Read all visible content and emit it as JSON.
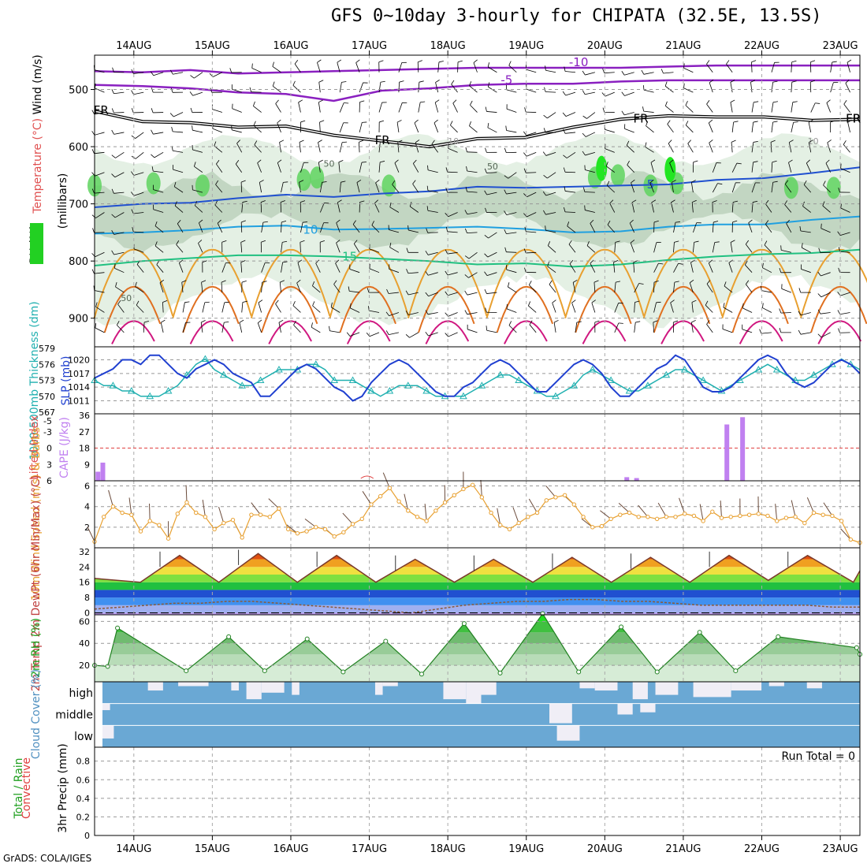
{
  "title": "GFS 0~10day 3-hourly for CHIPATA (32.5E, 13.5S)",
  "credit": "GrADS: COLA/IGES",
  "chart_data": [
    {
      "panel": "upper-air",
      "type": "contour",
      "ylabel_parts": [
        "RH (%)",
        "Temperature",
        "(°C)",
        "Wind",
        "(m/s)",
        "(millibars)"
      ],
      "yticks": [
        500,
        600,
        700,
        800,
        900
      ],
      "ylim": [
        950,
        440
      ],
      "contour_labels": {
        "minus10": "-10",
        "minus5": "-5",
        "freezing": "FR",
        "plus5": "5",
        "plus10": "10",
        "plus15": "15",
        "rh50": "50",
        "rh10": "10"
      },
      "isotherms_hpa": {
        "minus10": [
          468,
          470,
          466,
          472,
          470,
          468,
          466,
          464,
          462,
          462,
          462,
          462,
          460,
          458,
          458,
          458,
          458
        ],
        "minus5": [
          492,
          494,
          498,
          505,
          508,
          520,
          502,
          498,
          492,
          490,
          490,
          486,
          484,
          484,
          484,
          484,
          484
        ],
        "freezing": [
          538,
          556,
          558,
          566,
          564,
          580,
          590,
          600,
          586,
          584,
          566,
          552,
          546,
          548,
          548,
          554,
          552
        ],
        "plus5": [
          706,
          700,
          698,
          690,
          684,
          688,
          682,
          678,
          670,
          672,
          670,
          668,
          666,
          658,
          655,
          646,
          636
        ],
        "plus10": [
          752,
          750,
          746,
          740,
          738,
          745,
          744,
          742,
          740,
          744,
          750,
          748,
          740,
          736,
          736,
          728,
          722
        ],
        "plus15": [
          808,
          800,
          795,
          790,
          790,
          792,
          796,
          800,
          806,
          804,
          810,
          806,
          798,
          792,
          788,
          786,
          780
        ]
      }
    },
    {
      "panel": "sea-level-pressure-thickness",
      "type": "line",
      "ylabel_left": "1000-500mb Thickness (dm)",
      "ylabel_right": "SLP (mb)",
      "thickness_ticks": [
        567,
        570,
        573,
        576,
        579
      ],
      "slp_ticks": [
        1011,
        1014,
        1017,
        1020
      ],
      "thickness_ylim": [
        567,
        579
      ],
      "slp_ylim": [
        1008.5,
        1022.5
      ],
      "slp": [
        1016,
        1017,
        1018,
        1020,
        1020,
        1019,
        1021,
        1021,
        1019,
        1017,
        1016,
        1018,
        1019,
        1020,
        1019,
        1017,
        1016,
        1015,
        1012,
        1012,
        1014,
        1016,
        1018,
        1019,
        1018,
        1016,
        1014,
        1013,
        1011,
        1012,
        1015,
        1017,
        1019,
        1020,
        1019,
        1017,
        1015,
        1013,
        1012,
        1012,
        1014,
        1015,
        1017,
        1019,
        1020,
        1019,
        1017,
        1015,
        1013,
        1013,
        1015,
        1017,
        1019,
        1020,
        1019,
        1017,
        1014,
        1012,
        1012,
        1014,
        1016,
        1018,
        1019,
        1021,
        1020,
        1017,
        1014,
        1013,
        1013,
        1014,
        1016,
        1018,
        1020,
        1021,
        1020,
        1017,
        1015,
        1014,
        1015,
        1017,
        1019,
        1020,
        1019,
        1017
      ],
      "thickness": [
        573,
        572,
        572,
        571,
        571,
        570,
        570,
        570,
        571,
        572,
        574,
        576,
        577,
        575,
        574,
        573,
        572,
        572,
        573,
        574,
        575,
        575,
        575,
        576,
        576,
        575,
        573,
        573,
        573,
        572,
        571,
        570,
        571,
        572,
        572,
        572,
        571,
        570,
        570,
        570,
        570,
        571,
        572,
        573,
        574,
        574,
        573,
        572,
        571,
        570,
        570,
        571,
        572,
        574,
        575,
        574,
        573,
        572,
        571,
        571,
        572,
        573,
        574,
        575,
        575,
        574,
        573,
        572,
        571,
        572,
        573,
        574,
        575,
        576,
        575,
        574,
        573,
        573,
        574,
        575,
        576,
        577,
        576,
        575
      ]
    },
    {
      "panel": "stability",
      "type": "bar",
      "ylabel_left": "Lifted Index",
      "ylabel_right": "CAPE (J/kg)",
      "li_ticks": [
        -5,
        -3,
        0,
        3,
        6
      ],
      "cape_ticks": [
        9,
        18,
        27,
        36
      ],
      "cape_ylim": [
        0,
        36
      ],
      "cape": [
        {
          "t": 0.1,
          "v": 5
        },
        {
          "t": 0.6,
          "v": 10
        },
        {
          "t": 54.0,
          "v": 2
        },
        {
          "t": 55.0,
          "v": 1.5
        },
        {
          "t": 64.2,
          "v": 31
        },
        {
          "t": 65.8,
          "v": 35
        }
      ],
      "lifted_index_marks": [
        {
          "t": 27.8,
          "v": 6.0
        }
      ]
    },
    {
      "panel": "surface-wind",
      "type": "line",
      "ylabel": "10m Wind Speed (m/s) & Barbs",
      "yticks": [
        2,
        4,
        6
      ],
      "ylim": [
        0,
        6.5
      ],
      "speed": [
        0.6,
        3.0,
        4.0,
        3.4,
        3.2,
        1.6,
        2.6,
        2.2,
        0.9,
        3.3,
        4.4,
        3.4,
        3.0,
        1.8,
        2.4,
        2.7,
        1.0,
        3.2,
        3.2,
        3.0,
        3.8,
        1.8,
        1.4,
        1.6,
        2.0,
        1.8,
        1.1,
        1.5,
        2.3,
        2.8,
        4.2,
        5.0,
        5.8,
        4.5,
        3.6,
        3.0,
        2.6,
        3.6,
        4.4,
        5.1,
        5.7,
        6.1,
        4.9,
        3.4,
        2.2,
        1.8,
        2.4,
        3.0,
        3.4,
        4.6,
        4.9,
        5.1,
        4.2,
        3.0,
        2.0,
        2.1,
        2.8,
        3.2,
        3.4,
        3.0,
        3.0,
        2.8,
        3.0,
        3.0,
        3.3,
        3.1,
        2.6,
        3.5,
        2.9,
        3.0,
        3.1,
        3.2,
        3.3,
        3.1,
        2.6,
        2.9,
        3.0,
        2.4,
        3.4,
        3.2,
        3.1,
        2.6,
        0.8,
        0.5
      ]
    },
    {
      "panel": "temperature",
      "type": "area",
      "ylabel": "2m Temp 2m DewPt (6hr Min/Max) (°C)",
      "yticks": [
        0,
        8,
        16,
        24,
        32
      ],
      "ylim": [
        -1,
        34
      ],
      "daily_max": [
        30,
        31,
        30,
        28,
        28,
        29,
        29,
        30,
        30
      ],
      "daily_min": [
        16,
        16,
        16,
        16,
        16,
        16,
        16,
        16,
        17
      ],
      "first_min": 18,
      "dewpoint": [
        2,
        3,
        4,
        5,
        5,
        6,
        6,
        5,
        4,
        3,
        2,
        1,
        0,
        2,
        4,
        5,
        6,
        6,
        7,
        7,
        6,
        6,
        5,
        4,
        4,
        4,
        4,
        4,
        3,
        3
      ]
    },
    {
      "panel": "relative-humidity",
      "type": "area",
      "ylabel": "2m RH (%)",
      "yticks": [
        20,
        40,
        60
      ],
      "ylim": [
        5,
        66
      ],
      "daily_peak": [
        54,
        46,
        44,
        42,
        58,
        67,
        55,
        50,
        46,
        36
      ],
      "daily_trough": [
        16,
        15,
        15,
        14,
        12,
        13,
        14,
        14,
        15
      ]
    },
    {
      "panel": "cloud-cover",
      "type": "heatmap",
      "ylabel": "Cloud Cover (%)",
      "row_labels": [
        "high",
        "middle",
        "low"
      ],
      "high_gaps": [
        [
          12,
          16,
          0.4
        ],
        [
          20,
          28,
          0.2
        ],
        [
          34,
          36,
          0.4
        ],
        [
          38,
          42,
          0.8
        ],
        [
          42,
          48,
          0.5
        ],
        [
          50,
          52,
          0.6
        ],
        [
          72,
          74,
          0.6
        ],
        [
          74,
          78,
          0.2
        ],
        [
          90,
          96,
          0.8
        ],
        [
          96,
          100,
          1.0
        ],
        [
          100,
          104,
          0.6
        ],
        [
          126,
          130,
          0.3
        ],
        [
          130,
          136,
          0.4
        ],
        [
          140,
          144,
          0.8
        ],
        [
          146,
          152,
          0.6
        ],
        [
          156,
          166,
          0.7
        ],
        [
          166,
          174,
          0.4
        ],
        [
          176,
          180,
          0.2
        ],
        [
          186,
          190,
          0.3
        ]
      ],
      "middle_gaps": [
        [
          0,
          2,
          0.3
        ],
        [
          118,
          124,
          0.9
        ],
        [
          136,
          140,
          0.5
        ],
        [
          142,
          146,
          0.4
        ]
      ],
      "low_gaps": [
        [
          0,
          3,
          0.6
        ],
        [
          120,
          126,
          0.7
        ]
      ]
    },
    {
      "panel": "precipitation",
      "type": "bar",
      "ylabel_parts": [
        "Total / Rain",
        "Convective",
        "3hr Precip (mm)"
      ],
      "yticks": [
        0,
        0.2,
        0.4,
        0.6,
        0.8
      ],
      "ylim": [
        0,
        0.95
      ],
      "run_total": "Run Total = 0",
      "values": []
    }
  ],
  "date_labels": [
    "14AUG",
    "15AUG",
    "16AUG",
    "17AUG",
    "18AUG",
    "19AUG",
    "20AUG",
    "21AUG",
    "22AUG",
    "23AUG"
  ],
  "time_axis": {
    "hours_total": 234,
    "first_label_hour": 12
  }
}
